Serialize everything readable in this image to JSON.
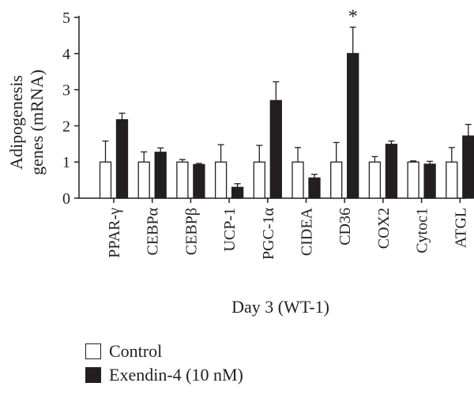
{
  "chart_data": {
    "type": "bar",
    "categories": [
      "PPAR-γ",
      "CEBPα",
      "CEBPβ",
      "UCP-1",
      "PGC-1α",
      "CIDEA",
      "CD36",
      "COX2",
      "Cytoc1",
      "ATGL"
    ],
    "series": [
      {
        "name": "Control",
        "color": "#ffffff",
        "values": [
          1.0,
          1.0,
          1.0,
          1.0,
          1.0,
          1.0,
          1.0,
          1.0,
          1.0,
          1.0
        ],
        "errors": [
          0.58,
          0.28,
          0.07,
          0.48,
          0.46,
          0.4,
          0.54,
          0.15,
          0.03,
          0.4
        ]
      },
      {
        "name": "Exendin-4 (10 nM)",
        "color": "#231f20",
        "values": [
          2.17,
          1.27,
          0.93,
          0.3,
          2.7,
          0.56,
          4.0,
          1.49,
          0.94,
          1.72
        ],
        "errors": [
          0.18,
          0.12,
          0.03,
          0.1,
          0.52,
          0.1,
          0.73,
          0.09,
          0.08,
          0.32
        ]
      }
    ],
    "annotations": [
      {
        "category": "CD36",
        "text": "*"
      }
    ],
    "xlabel": "Day 3 (WT-1)",
    "ylabel": "Adipogenesis genes (mRNA)",
    "ylabel_lines": [
      "Adipogenesis",
      "genes (mRNA)"
    ],
    "ylim": [
      0,
      5
    ],
    "yticks": [
      0,
      1,
      2,
      3,
      4,
      5
    ],
    "grid": false,
    "legend_position": "bottom-left"
  }
}
